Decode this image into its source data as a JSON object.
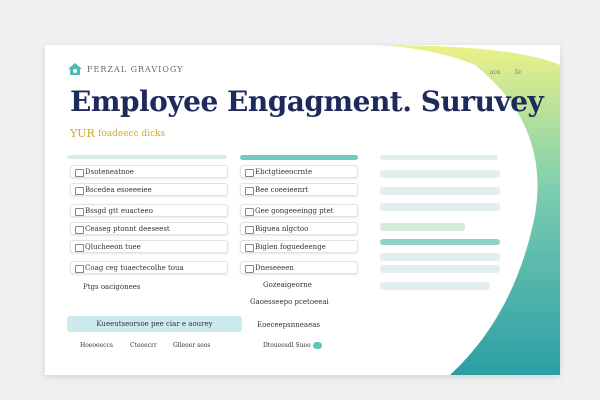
{
  "header": {
    "logo_text": "FERZAL GRAVIOGY",
    "title": "Employee Engagment. Suruvey",
    "subtitle_mark": "YUR",
    "subtitle": "foadeecc dicks",
    "corner": [
      "ace",
      "Ie"
    ]
  },
  "left": {
    "items": [
      "Dsoteneatnoe",
      "Bscedea esoeeeiee",
      "Bssgd gtt euacteeo",
      "Ceaseg ptonnt deeseest",
      "Qlucheeon tuee",
      "Coag ceg tuaectecolhe toua"
    ],
    "extra": "Ptgs oacigonees",
    "button": "Kueeutseorsoe pee ciar e aourey",
    "footer": [
      "Hoeoeeccs",
      "Cteeecrr",
      "Glleoer sees"
    ]
  },
  "middle": {
    "items": [
      "Ebctgtieeocrnte",
      "Bee coeeieenrt",
      "Gee gongeeeingg ptet",
      "Biguea nlgctoo",
      "Biglen foguedeenge",
      "Dneseeeen"
    ],
    "extra": [
      "Gozeaigeorne",
      "Gaoesseepo pcetoeeai",
      "Eoeceepsnneaeas",
      "Dtoueesdl Suee"
    ]
  }
}
